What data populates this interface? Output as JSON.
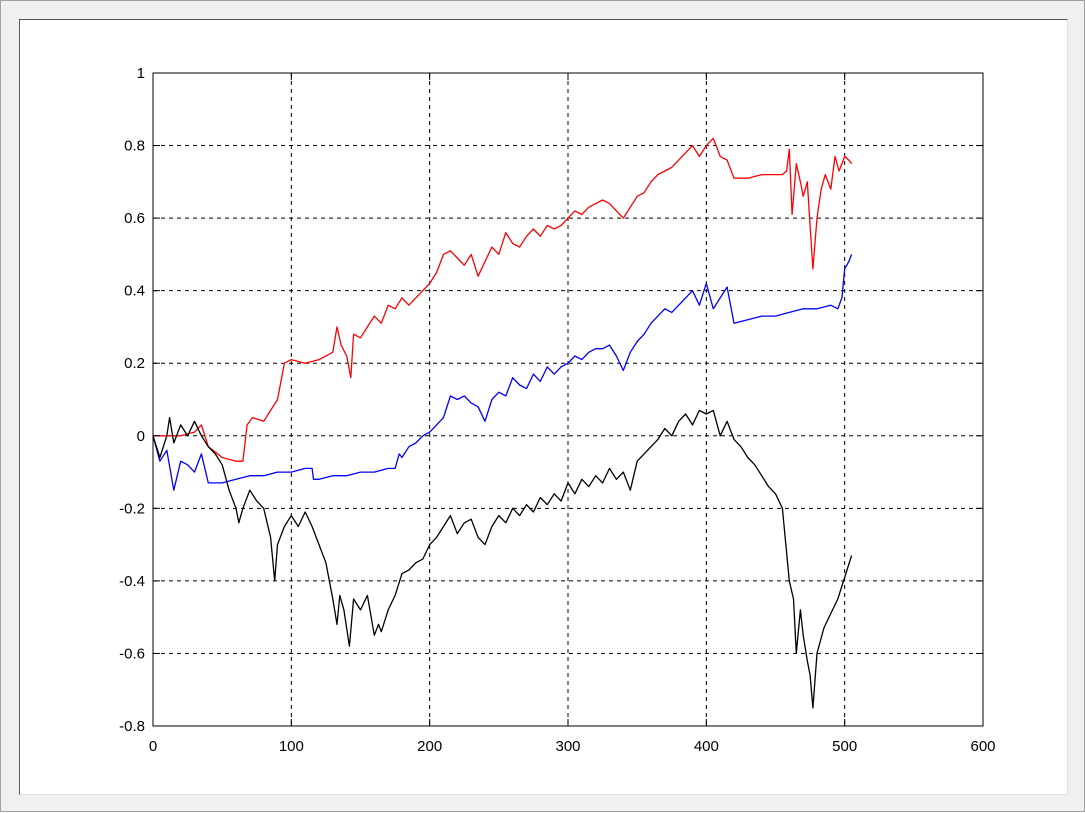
{
  "chart_data": {
    "type": "line",
    "title": "",
    "xlabel": "",
    "ylabel": "",
    "xlim": [
      0,
      600
    ],
    "ylim": [
      -0.8,
      1
    ],
    "xticks": [
      0,
      100,
      200,
      300,
      400,
      500,
      600
    ],
    "yticks": [
      -0.8,
      -0.6,
      -0.4,
      -0.2,
      0,
      0.2,
      0.4,
      0.6,
      0.8,
      1
    ],
    "xtick_labels": [
      "0",
      "100",
      "200",
      "300",
      "400",
      "500",
      "600"
    ],
    "ytick_labels": [
      "-0.8",
      "-0.6",
      "-0.4",
      "-0.2",
      "0",
      "0.2",
      "0.4",
      "0.6",
      "0.8",
      "1"
    ],
    "grid": true,
    "legend": "none",
    "series": [
      {
        "color": "#ff0000",
        "x": [
          0,
          10,
          20,
          30,
          35,
          40,
          50,
          60,
          65,
          68,
          72,
          80,
          90,
          95,
          100,
          110,
          120,
          130,
          133,
          136,
          140,
          143,
          145,
          150,
          155,
          160,
          165,
          170,
          175,
          180,
          185,
          190,
          195,
          200,
          205,
          210,
          215,
          220,
          225,
          230,
          235,
          240,
          245,
          250,
          255,
          260,
          265,
          270,
          275,
          280,
          285,
          290,
          295,
          300,
          305,
          310,
          315,
          320,
          325,
          330,
          335,
          340,
          345,
          350,
          355,
          360,
          365,
          370,
          375,
          380,
          385,
          390,
          395,
          400,
          405,
          410,
          415,
          420,
          430,
          440,
          450,
          455,
          458,
          460,
          462,
          465,
          468,
          470,
          473,
          475,
          477,
          480,
          483,
          486,
          490,
          493,
          496,
          500,
          503,
          505
        ],
        "y": [
          0.0,
          0.0,
          0.0,
          0.01,
          0.03,
          -0.03,
          -0.06,
          -0.07,
          -0.07,
          0.03,
          0.05,
          0.04,
          0.1,
          0.2,
          0.21,
          0.2,
          0.21,
          0.23,
          0.3,
          0.25,
          0.22,
          0.16,
          0.28,
          0.27,
          0.3,
          0.33,
          0.31,
          0.36,
          0.35,
          0.38,
          0.36,
          0.38,
          0.4,
          0.42,
          0.45,
          0.5,
          0.51,
          0.49,
          0.47,
          0.5,
          0.44,
          0.48,
          0.52,
          0.5,
          0.56,
          0.53,
          0.52,
          0.55,
          0.57,
          0.55,
          0.58,
          0.57,
          0.58,
          0.6,
          0.62,
          0.61,
          0.63,
          0.64,
          0.65,
          0.64,
          0.62,
          0.6,
          0.63,
          0.66,
          0.67,
          0.7,
          0.72,
          0.73,
          0.74,
          0.76,
          0.78,
          0.8,
          0.77,
          0.8,
          0.82,
          0.77,
          0.76,
          0.71,
          0.71,
          0.72,
          0.72,
          0.72,
          0.73,
          0.79,
          0.61,
          0.75,
          0.7,
          0.66,
          0.7,
          0.58,
          0.46,
          0.6,
          0.68,
          0.72,
          0.68,
          0.77,
          0.73,
          0.77,
          0.76,
          0.75
        ]
      },
      {
        "color": "#0000ff",
        "x": [
          0,
          5,
          10,
          15,
          20,
          25,
          30,
          35,
          40,
          50,
          60,
          70,
          80,
          90,
          100,
          110,
          115,
          116,
          120,
          130,
          140,
          150,
          160,
          170,
          175,
          178,
          180,
          185,
          190,
          195,
          200,
          205,
          210,
          215,
          220,
          225,
          230,
          235,
          240,
          245,
          250,
          255,
          260,
          265,
          270,
          275,
          280,
          285,
          290,
          295,
          300,
          305,
          310,
          315,
          320,
          325,
          330,
          335,
          340,
          345,
          350,
          355,
          360,
          365,
          370,
          375,
          380,
          385,
          390,
          395,
          400,
          405,
          410,
          415,
          420,
          430,
          440,
          450,
          460,
          470,
          480,
          490,
          495,
          498,
          500,
          503,
          505
        ],
        "y": [
          0.0,
          -0.07,
          -0.04,
          -0.15,
          -0.07,
          -0.08,
          -0.1,
          -0.05,
          -0.13,
          -0.13,
          -0.12,
          -0.11,
          -0.11,
          -0.1,
          -0.1,
          -0.09,
          -0.09,
          -0.12,
          -0.12,
          -0.11,
          -0.11,
          -0.1,
          -0.1,
          -0.09,
          -0.09,
          -0.05,
          -0.06,
          -0.03,
          -0.02,
          0.0,
          0.01,
          0.03,
          0.05,
          0.11,
          0.1,
          0.11,
          0.09,
          0.08,
          0.04,
          0.1,
          0.12,
          0.11,
          0.16,
          0.14,
          0.13,
          0.17,
          0.15,
          0.19,
          0.17,
          0.19,
          0.2,
          0.22,
          0.21,
          0.23,
          0.24,
          0.24,
          0.25,
          0.22,
          0.18,
          0.23,
          0.26,
          0.28,
          0.31,
          0.33,
          0.35,
          0.34,
          0.36,
          0.38,
          0.4,
          0.36,
          0.42,
          0.35,
          0.38,
          0.41,
          0.31,
          0.32,
          0.33,
          0.33,
          0.34,
          0.35,
          0.35,
          0.36,
          0.35,
          0.38,
          0.46,
          0.48,
          0.5
        ]
      },
      {
        "color": "#000000",
        "x": [
          0,
          5,
          10,
          12,
          15,
          20,
          25,
          30,
          35,
          40,
          45,
          50,
          55,
          60,
          62,
          65,
          70,
          75,
          80,
          85,
          88,
          90,
          95,
          100,
          105,
          110,
          115,
          120,
          125,
          130,
          133,
          135,
          138,
          142,
          145,
          150,
          155,
          160,
          163,
          165,
          170,
          175,
          180,
          185,
          190,
          195,
          200,
          205,
          210,
          215,
          220,
          225,
          230,
          235,
          240,
          245,
          250,
          255,
          260,
          265,
          270,
          275,
          280,
          285,
          290,
          295,
          300,
          305,
          310,
          315,
          320,
          325,
          330,
          335,
          340,
          345,
          350,
          355,
          360,
          365,
          370,
          375,
          380,
          385,
          390,
          395,
          400,
          405,
          410,
          415,
          420,
          425,
          430,
          435,
          440,
          445,
          450,
          455,
          460,
          463,
          465,
          468,
          470,
          473,
          475,
          477,
          480,
          485,
          490,
          495,
          500,
          505
        ],
        "y": [
          0.0,
          -0.06,
          0.0,
          0.05,
          -0.02,
          0.03,
          0.0,
          0.04,
          0.0,
          -0.03,
          -0.05,
          -0.08,
          -0.15,
          -0.2,
          -0.24,
          -0.2,
          -0.15,
          -0.18,
          -0.2,
          -0.28,
          -0.4,
          -0.3,
          -0.25,
          -0.22,
          -0.25,
          -0.21,
          -0.25,
          -0.3,
          -0.35,
          -0.45,
          -0.52,
          -0.44,
          -0.48,
          -0.58,
          -0.45,
          -0.48,
          -0.44,
          -0.55,
          -0.52,
          -0.54,
          -0.48,
          -0.44,
          -0.38,
          -0.37,
          -0.35,
          -0.34,
          -0.3,
          -0.28,
          -0.25,
          -0.22,
          -0.27,
          -0.24,
          -0.23,
          -0.28,
          -0.3,
          -0.25,
          -0.22,
          -0.24,
          -0.2,
          -0.22,
          -0.19,
          -0.21,
          -0.17,
          -0.19,
          -0.16,
          -0.18,
          -0.13,
          -0.16,
          -0.12,
          -0.14,
          -0.11,
          -0.13,
          -0.09,
          -0.12,
          -0.1,
          -0.15,
          -0.07,
          -0.05,
          -0.03,
          -0.01,
          0.02,
          0.0,
          0.04,
          0.06,
          0.03,
          0.07,
          0.06,
          0.07,
          0.0,
          0.04,
          -0.01,
          -0.03,
          -0.06,
          -0.08,
          -0.11,
          -0.14,
          -0.16,
          -0.2,
          -0.4,
          -0.45,
          -0.6,
          -0.48,
          -0.55,
          -0.62,
          -0.66,
          -0.75,
          -0.6,
          -0.53,
          -0.49,
          -0.45,
          -0.39,
          -0.33
        ]
      }
    ]
  }
}
